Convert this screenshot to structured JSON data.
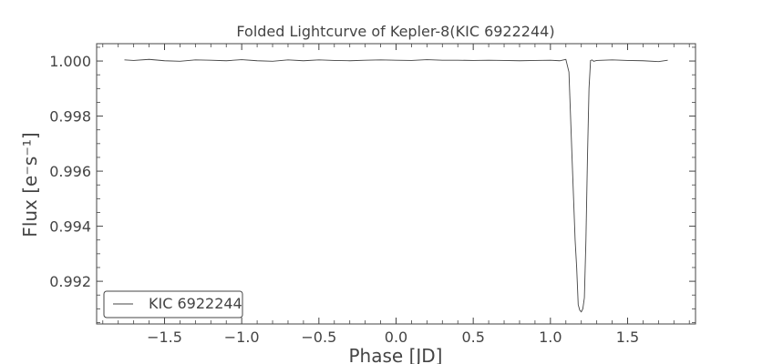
{
  "chart_data": {
    "type": "line",
    "title": "Folded Lightcurve of Kepler-8(KIC 6922244)",
    "xlabel": "Phase [JD]",
    "ylabel": "Flux [e⁻s⁻¹]",
    "xlim": [
      -1.94,
      1.94
    ],
    "ylim": [
      0.99045,
      1.00063
    ],
    "xticks": [
      -1.5,
      -1.0,
      -0.5,
      0.0,
      0.5,
      1.0,
      1.5
    ],
    "xtick_labels": [
      "−1.5",
      "−1.0",
      "−0.5",
      "0.0",
      "0.5",
      "1.0",
      "1.5"
    ],
    "yticks": [
      0.992,
      0.994,
      0.996,
      0.998,
      1.0
    ],
    "ytick_labels": [
      "0.992",
      "0.994",
      "0.996",
      "0.998",
      "1.000"
    ],
    "grid": false,
    "legend": {
      "placement": "lower-left",
      "entries": [
        "KIC 6922244"
      ]
    },
    "series": [
      {
        "name": "KIC 6922244",
        "color": "#444444",
        "x": [
          -1.76,
          -1.7,
          -1.6,
          -1.5,
          -1.4,
          -1.3,
          -1.2,
          -1.1,
          -1.0,
          -0.9,
          -0.8,
          -0.7,
          -0.6,
          -0.5,
          -0.4,
          -0.3,
          -0.2,
          -0.1,
          0.0,
          0.1,
          0.2,
          0.3,
          0.4,
          0.5,
          0.6,
          0.7,
          0.8,
          0.9,
          1.0,
          1.06,
          1.1,
          1.12,
          1.14,
          1.16,
          1.17,
          1.18,
          1.19,
          1.2,
          1.21,
          1.22,
          1.23,
          1.24,
          1.25,
          1.26,
          1.27,
          1.28,
          1.3,
          1.4,
          1.5,
          1.6,
          1.7,
          1.76
        ],
        "y": [
          1.00004,
          1.00002,
          1.00006,
          1.00001,
          0.99999,
          1.00004,
          1.00003,
          1.00001,
          1.00005,
          1.00001,
          0.99999,
          1.00004,
          1.00001,
          1.00004,
          1.00002,
          1.00001,
          1.00003,
          1.00004,
          1.00003,
          1.00002,
          1.00005,
          1.00003,
          1.00003,
          1.00002,
          1.00003,
          1.00002,
          1.00001,
          1.00002,
          1.00003,
          1.00001,
          1.00006,
          0.9996,
          0.9965,
          0.9935,
          0.9925,
          0.99115,
          0.99095,
          0.99089,
          0.991,
          0.9914,
          0.9935,
          0.9965,
          0.999,
          1.00002,
          1.00004,
          0.99999,
          1.00002,
          1.00004,
          1.00002,
          1.00001,
          0.99998,
          1.00003
        ]
      }
    ]
  }
}
